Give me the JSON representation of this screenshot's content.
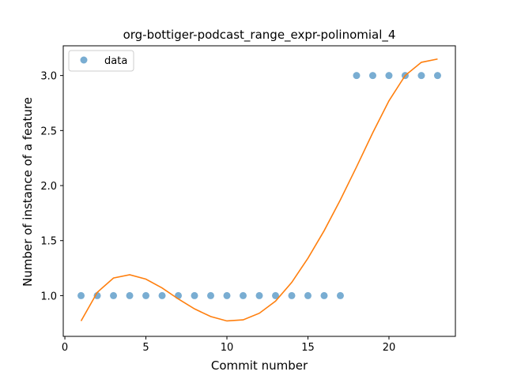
{
  "chart_data": {
    "type": "scatter",
    "title": "org-bottiger-podcast_range_expr-polinomial_4",
    "xlabel": "Commit number",
    "ylabel": "Number of instance of a feature",
    "xlim": [
      -0.1,
      24.1
    ],
    "ylim": [
      0.63,
      3.27
    ],
    "xticks": [
      0,
      5,
      10,
      15,
      20
    ],
    "yticks": [
      1.0,
      1.5,
      2.0,
      2.5,
      3.0
    ],
    "xtick_labels": [
      "0",
      "5",
      "10",
      "15",
      "20"
    ],
    "ytick_labels": [
      "1.0",
      "1.5",
      "2.0",
      "2.5",
      "3.0"
    ],
    "legend": {
      "location": "upper-left",
      "entries": [
        "data"
      ]
    },
    "grid": false,
    "series": [
      {
        "name": "data",
        "kind": "scatter",
        "color": "#1f77b4",
        "x": [
          1,
          2,
          3,
          4,
          5,
          6,
          7,
          8,
          9,
          10,
          11,
          12,
          13,
          14,
          15,
          16,
          17,
          18,
          19,
          20,
          21,
          22,
          23
        ],
        "y": [
          1,
          1,
          1,
          1,
          1,
          1,
          1,
          1,
          1,
          1,
          1,
          1,
          1,
          1,
          1,
          1,
          1,
          3,
          3,
          3,
          3,
          3,
          3
        ]
      },
      {
        "kind": "line",
        "color": "#ff7f0e",
        "x": [
          1,
          2,
          3,
          4,
          5,
          6,
          7,
          8,
          9,
          10,
          11,
          12,
          13,
          14,
          15,
          16,
          17,
          18,
          19,
          20,
          21,
          22,
          23
        ],
        "y": [
          0.77,
          1.03,
          1.16,
          1.19,
          1.15,
          1.07,
          0.97,
          0.88,
          0.81,
          0.77,
          0.78,
          0.84,
          0.95,
          1.12,
          1.34,
          1.59,
          1.87,
          2.17,
          2.48,
          2.77,
          3.0,
          3.12,
          3.15
        ]
      }
    ]
  }
}
